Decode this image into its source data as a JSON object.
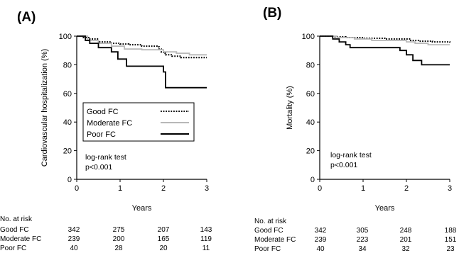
{
  "chart_data": [
    {
      "type": "line",
      "panel_label": "(A)",
      "xlabel": "Years",
      "ylabel": "Cardiovascular hospitalization (%)",
      "xlim": [
        0,
        3
      ],
      "ylim": [
        0,
        100
      ],
      "x_ticks": [
        "0",
        "1",
        "2",
        "3"
      ],
      "y_ticks": [
        "0",
        "20",
        "40",
        "60",
        "80",
        "100"
      ],
      "legend": {
        "placement": "center-left",
        "entries": [
          {
            "name": "Good FC",
            "color": "#000000",
            "style": "dotted"
          },
          {
            "name": "Moderate FC",
            "color": "#b8b8b8",
            "style": "solid"
          },
          {
            "name": "Poor FC",
            "color": "#000000",
            "style": "solid"
          }
        ]
      },
      "annotation": [
        "log-rank test",
        "p<0.001"
      ],
      "series": [
        {
          "name": "Good FC",
          "color": "#000000",
          "style": "dotted",
          "x": [
            0,
            0.15,
            0.3,
            0.5,
            0.8,
            1.0,
            1.2,
            1.5,
            1.85,
            1.9,
            1.95,
            2.0,
            2.05,
            2.2,
            2.4,
            3.0
          ],
          "y": [
            100,
            99,
            98,
            96,
            95,
            94.5,
            94,
            93,
            92.5,
            91,
            89,
            88,
            87,
            86,
            85,
            85
          ]
        },
        {
          "name": "Moderate FC",
          "color": "#b8b8b8",
          "style": "solid",
          "x": [
            0,
            0.25,
            0.5,
            0.8,
            1.1,
            1.5,
            1.9,
            2.0,
            2.3,
            2.6,
            3.0
          ],
          "y": [
            100,
            97,
            95,
            93,
            91,
            90.5,
            90.5,
            89,
            88,
            87,
            87
          ]
        },
        {
          "name": "Poor FC",
          "color": "#000000",
          "style": "solid",
          "x": [
            0,
            0.2,
            0.3,
            0.5,
            0.8,
            0.95,
            1.15,
            1.5,
            1.9,
            2.0,
            2.05,
            3.0
          ],
          "y": [
            100,
            97,
            95,
            92,
            89,
            84,
            79,
            79,
            79,
            75,
            64,
            64
          ]
        }
      ],
      "at_risk": {
        "title": "No. at risk",
        "rows": [
          {
            "label": "Good FC",
            "values": [
              "342",
              "275",
              "207",
              "143"
            ]
          },
          {
            "label": "Moderate FC",
            "values": [
              "239",
              "200",
              "165",
              "119"
            ]
          },
          {
            "label": "Poor FC",
            "values": [
              "40",
              "28",
              "20",
              "11"
            ]
          }
        ]
      }
    },
    {
      "type": "line",
      "panel_label": "(B)",
      "xlabel": "Years",
      "ylabel": "Mortality (%)",
      "xlim": [
        0,
        3
      ],
      "ylim": [
        0,
        100
      ],
      "x_ticks": [
        "0",
        "1",
        "2",
        "3"
      ],
      "y_ticks": [
        "0",
        "20",
        "40",
        "60",
        "80",
        "100"
      ],
      "annotation": [
        "log-rank test",
        "p<0.001"
      ],
      "series": [
        {
          "name": "Good FC",
          "color": "#000000",
          "style": "dotted",
          "x": [
            0,
            0.3,
            0.6,
            1.0,
            1.5,
            1.9,
            2.1,
            2.3,
            2.6,
            3.0
          ],
          "y": [
            100,
            99.5,
            99,
            98.5,
            98,
            98,
            97,
            96.5,
            96,
            95.5
          ]
        },
        {
          "name": "Moderate FC",
          "color": "#b8b8b8",
          "style": "solid",
          "x": [
            0,
            0.4,
            0.8,
            1.2,
            1.6,
            2.0,
            2.2,
            2.5,
            3.0
          ],
          "y": [
            100,
            99,
            98,
            97,
            97,
            96,
            95,
            94,
            94
          ]
        },
        {
          "name": "Poor FC",
          "color": "#000000",
          "style": "solid",
          "x": [
            0,
            0.3,
            0.45,
            0.6,
            0.7,
            1.5,
            1.85,
            2.0,
            2.15,
            2.3,
            2.35,
            3.0
          ],
          "y": [
            100,
            98,
            96,
            94,
            92,
            92,
            90,
            87,
            83,
            83,
            80,
            80
          ]
        }
      ],
      "at_risk": {
        "title": "No. at risk",
        "rows": [
          {
            "label": "Good FC",
            "values": [
              "342",
              "305",
              "248",
              "188"
            ]
          },
          {
            "label": "Moderate FC",
            "values": [
              "239",
              "223",
              "201",
              "151"
            ]
          },
          {
            "label": "Poor FC",
            "values": [
              "40",
              "34",
              "32",
              "23"
            ]
          }
        ]
      }
    }
  ]
}
